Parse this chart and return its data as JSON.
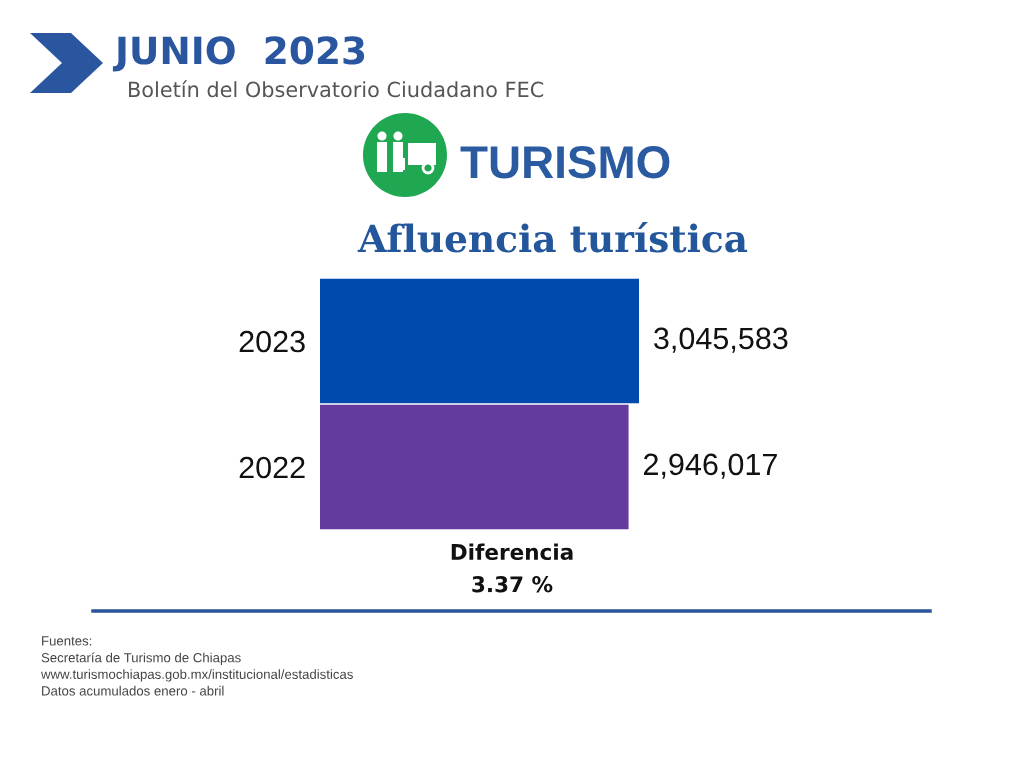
{
  "chart_data": {
    "type": "bar",
    "orientation": "horizontal",
    "title": "Afluencia turística",
    "categories": [
      "2023",
      "2022"
    ],
    "values": [
      3045583,
      2946017
    ],
    "colors": [
      "#004aad",
      "#643a9f"
    ],
    "value_labels": [
      "3,045,583",
      "2,946,017"
    ],
    "tick_labels": "y",
    "annotations": [
      "JUNIO  2023",
      "Boletín del Observatorio Ciudadano FEC",
      "TURISMO",
      "Diferencia\n3.37 %",
      "Fuentes:\nSecretaría de Turismo de Chiapas\nwww.turismochiapas.gob.mx/institucional/estadisticas\nDatos acumulados enero - abril"
    ]
  }
}
